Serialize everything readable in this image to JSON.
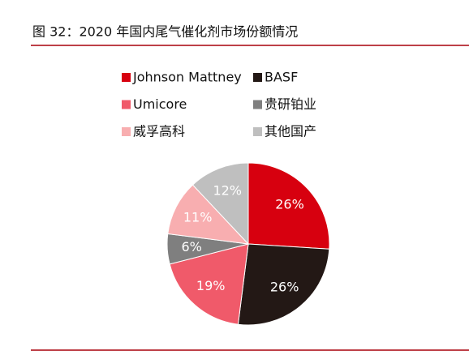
{
  "chart_data": {
    "type": "pie",
    "title": "图 32：2020 年国内尾气催化剂市场份额情况",
    "categories": [
      "Johnson Mattney",
      "BASF",
      "Umicore",
      "贵研铂业",
      "威孚高科",
      "其他国产"
    ],
    "values": [
      26,
      26,
      19,
      6,
      11,
      12
    ],
    "value_labels": [
      "26%",
      "26%",
      "19%",
      "6%",
      "11%",
      "12%"
    ],
    "colors": [
      "#d7000f",
      "#231815",
      "#f05a6a",
      "#7f7f7f",
      "#f8aeb0",
      "#bfbfbf"
    ]
  }
}
